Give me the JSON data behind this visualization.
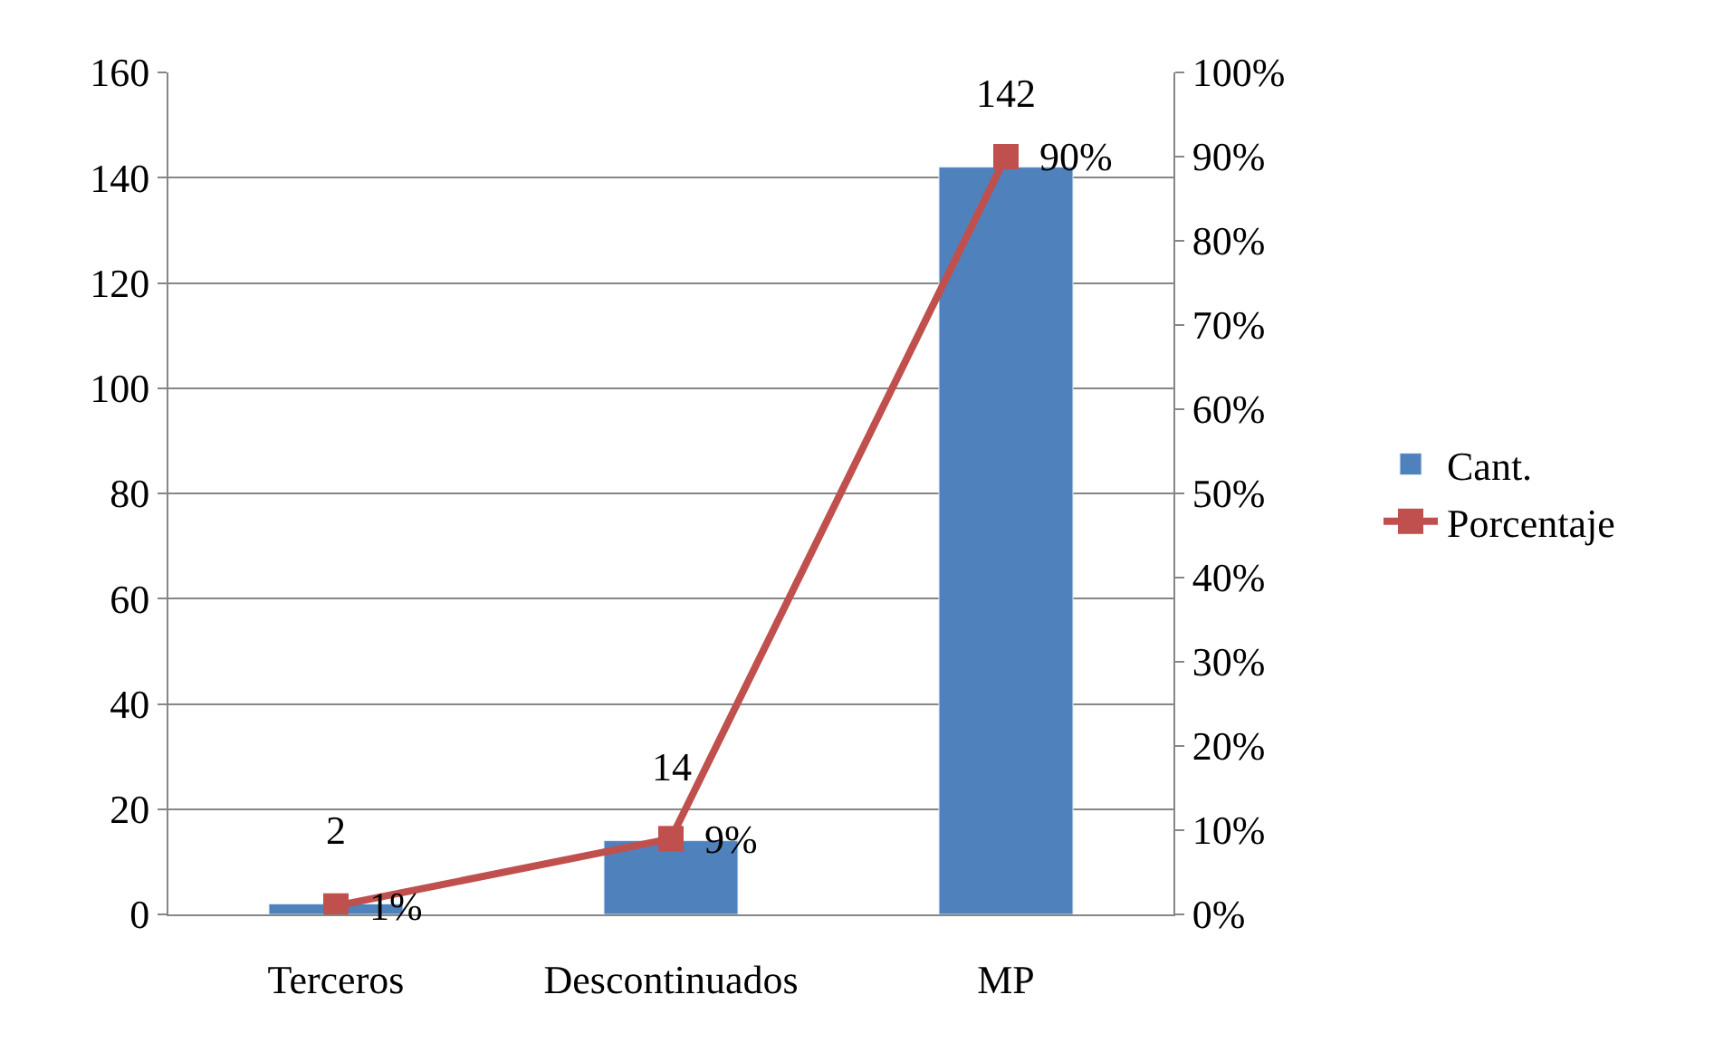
{
  "chart_data": {
    "type": "bar",
    "categories": [
      "Terceros",
      "Descontinuados",
      "MP"
    ],
    "series": [
      {
        "name": "Cant.",
        "color": "#4f81bd",
        "values": [
          2,
          14,
          142
        ],
        "value_labels": [
          "2",
          "14",
          "142"
        ]
      },
      {
        "name": "Porcentaje",
        "type": "line",
        "axis": "y2",
        "color": "#c0504d",
        "values": [
          1,
          9,
          90
        ],
        "value_labels": [
          "1%",
          "9%",
          "90%"
        ],
        "marker": "square"
      }
    ],
    "ylim": [
      0,
      160
    ],
    "yticks": [
      0,
      20,
      40,
      60,
      80,
      100,
      120,
      140,
      160
    ],
    "y2lim": [
      0,
      100
    ],
    "y2ticks": [
      {
        "value": 0,
        "label": "0%"
      },
      {
        "value": 10,
        "label": "10%"
      },
      {
        "value": 20,
        "label": "20%"
      },
      {
        "value": 30,
        "label": "30%"
      },
      {
        "value": 40,
        "label": "40%"
      },
      {
        "value": 50,
        "label": "50%"
      },
      {
        "value": 60,
        "label": "60%"
      },
      {
        "value": 70,
        "label": "70%"
      },
      {
        "value": 80,
        "label": "80%"
      },
      {
        "value": 90,
        "label": "90%"
      },
      {
        "value": 100,
        "label": "100%"
      }
    ],
    "grid": "y",
    "legend": "right"
  }
}
